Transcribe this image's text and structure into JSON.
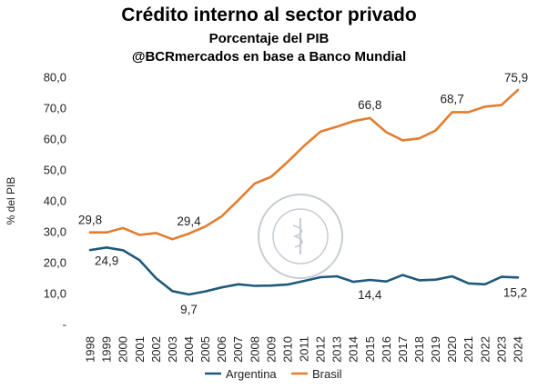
{
  "chart_data": {
    "type": "line",
    "title": "Crédito interno al sector privado",
    "subtitle": "Porcentaje del PIB",
    "source": "@BCRmercados en base a Banco Mundial",
    "ylabel": "% del PIB",
    "xlabel": "",
    "ylim": [
      0,
      80
    ],
    "yticks": [
      "-",
      "10,0",
      "20,0",
      "30,0",
      "40,0",
      "50,0",
      "60,0",
      "70,0",
      "80,0"
    ],
    "x": [
      "1998",
      "1999",
      "2000",
      "2001",
      "2002",
      "2003",
      "2004",
      "2005",
      "2006",
      "2007",
      "2008",
      "2009",
      "2010",
      "2011",
      "2012",
      "2013",
      "2014",
      "2015",
      "2016",
      "2017",
      "2018",
      "2019",
      "2020",
      "2021",
      "2022",
      "2023",
      "2024"
    ],
    "series": [
      {
        "name": "Argentina",
        "color": "#1f5a7a",
        "values": [
          24.1,
          24.9,
          24.0,
          20.8,
          15.0,
          10.8,
          9.7,
          10.7,
          12.0,
          13.0,
          12.5,
          12.6,
          12.9,
          14.1,
          15.3,
          15.6,
          13.8,
          14.4,
          13.9,
          16.0,
          14.3,
          14.5,
          15.6,
          13.3,
          13.0,
          15.4,
          15.2
        ]
      },
      {
        "name": "Brasil",
        "color": "#e37d2f",
        "values": [
          29.8,
          29.8,
          31.2,
          29.0,
          29.6,
          27.6,
          29.4,
          31.7,
          35.0,
          40.2,
          45.6,
          47.8,
          52.6,
          57.8,
          62.4,
          64.0,
          65.8,
          66.8,
          62.2,
          59.6,
          60.2,
          62.8,
          68.7,
          68.7,
          70.5,
          71.0,
          75.9
        ]
      }
    ],
    "annotations": [
      {
        "series": "Brasil",
        "x": "1998",
        "text": "29,8"
      },
      {
        "series": "Argentina",
        "x": "1999",
        "text": "24,9"
      },
      {
        "series": "Brasil",
        "x": "2004",
        "text": "29,4"
      },
      {
        "series": "Argentina",
        "x": "2004",
        "text": "9,7"
      },
      {
        "series": "Brasil",
        "x": "2015",
        "text": "66,8"
      },
      {
        "series": "Argentina",
        "x": "2015",
        "text": "14,4"
      },
      {
        "series": "Brasil",
        "x": "2020",
        "text": "68,7"
      },
      {
        "series": "Brasil",
        "x": "2024",
        "text": "75,9"
      },
      {
        "series": "Argentina",
        "x": "2024",
        "text": "15,2"
      }
    ],
    "grid": false,
    "legend": "bottom",
    "watermark": "BOLSA DE COMERCIO DE ROSARIO"
  }
}
